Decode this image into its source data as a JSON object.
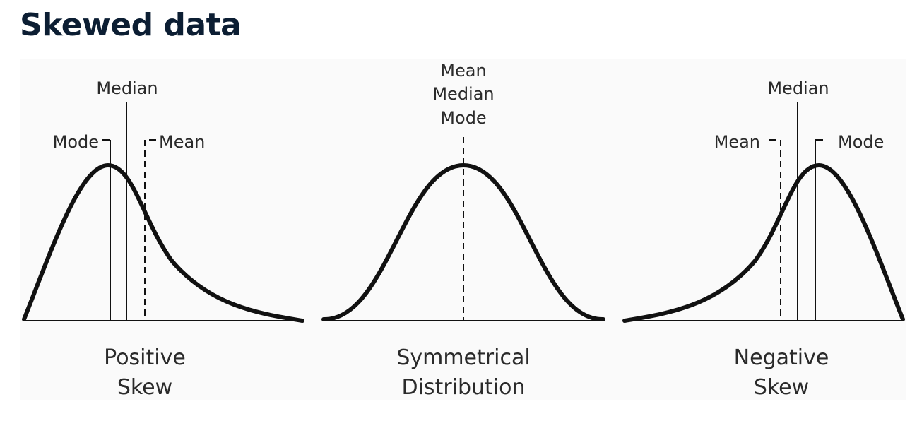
{
  "title": "Skewed data",
  "panels": [
    {
      "caption": [
        "Positive",
        "Skew"
      ],
      "labels": {
        "mean": "Mean",
        "median": "Median",
        "mode": "Mode"
      }
    },
    {
      "caption": [
        "Symmetrical",
        "Distribution"
      ],
      "labels": {
        "stack": [
          "Mean",
          "Median",
          "Mode"
        ]
      }
    },
    {
      "caption": [
        "Negative",
        "Skew"
      ],
      "labels": {
        "mean": "Mean",
        "median": "Median",
        "mode": "Mode"
      }
    }
  ]
}
